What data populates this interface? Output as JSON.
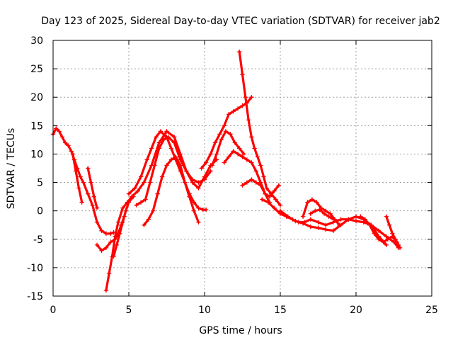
{
  "chart_data": {
    "type": "scatter",
    "title": "Day 123 of 2025, Sidereal Day-to-day VTEC variation (SDTVAR) for receiver jab2",
    "xlabel": "GPS time / hours",
    "ylabel": "SDTVAR / TECUs",
    "xlim": [
      0,
      25
    ],
    "ylim": [
      -15,
      30
    ],
    "xticks": [
      "0",
      "5",
      "10",
      "15",
      "20",
      "25"
    ],
    "yticks": [
      "-15",
      "-10",
      "-5",
      "0",
      "5",
      "10",
      "15",
      "20",
      "25",
      "30"
    ],
    "grid": true,
    "marker": "+",
    "color": "#ff0000",
    "series": [
      {
        "name": "trace-1",
        "x": [
          0.0,
          0.2,
          0.4,
          0.6,
          0.8,
          1.0,
          1.2,
          1.4,
          1.6,
          1.8,
          2.0,
          2.3,
          2.6,
          2.9,
          3.2,
          3.5,
          3.8,
          4.0
        ],
        "y": [
          13.5,
          14.5,
          14.0,
          13.0,
          12.0,
          11.5,
          10.5,
          9.0,
          7.5,
          6.0,
          5.0,
          3.0,
          1.0,
          -2.0,
          -3.5,
          -4.0,
          -4.0,
          -3.8
        ]
      },
      {
        "name": "trace-2",
        "x": [
          1.3,
          1.5,
          1.7,
          1.9
        ],
        "y": [
          10.0,
          7.0,
          4.0,
          1.5
        ]
      },
      {
        "name": "trace-3",
        "x": [
          2.3,
          2.5,
          2.7,
          2.9
        ],
        "y": [
          7.5,
          5.0,
          2.5,
          0.5
        ]
      },
      {
        "name": "trace-4",
        "x": [
          2.9,
          3.2,
          3.5,
          3.8,
          4.1,
          4.3,
          4.5,
          4.7
        ],
        "y": [
          -6.0,
          -7.0,
          -6.5,
          -5.5,
          -5.0,
          -4.0,
          -2.5,
          -1.0
        ]
      },
      {
        "name": "trace-5",
        "x": [
          3.5,
          3.7,
          3.9,
          4.1,
          4.3,
          4.6,
          4.9,
          5.2,
          5.6,
          6.0,
          6.5,
          7.0,
          7.5,
          8.0,
          8.4,
          8.8,
          9.2,
          9.6,
          10.0,
          10.4,
          10.8
        ],
        "y": [
          -14.0,
          -11.0,
          -8.0,
          -4.5,
          -2.0,
          0.5,
          1.5,
          2.5,
          3.5,
          5.0,
          8.0,
          12.0,
          14.0,
          13.0,
          10.0,
          7.0,
          5.0,
          4.0,
          6.0,
          8.0,
          9.0
        ]
      },
      {
        "name": "trace-6",
        "x": [
          4.0,
          4.2,
          4.4,
          4.6,
          4.8,
          5.0,
          5.3
        ],
        "y": [
          -8.0,
          -6.0,
          -4.0,
          -2.0,
          0.0,
          1.5,
          2.5
        ]
      },
      {
        "name": "trace-7",
        "x": [
          5.0,
          5.4,
          5.8,
          6.2,
          6.5,
          6.8,
          7.1,
          7.5,
          7.8,
          8.1,
          8.4,
          8.7,
          9.0,
          9.3,
          9.6,
          9.9,
          10.1
        ],
        "y": [
          3.0,
          4.0,
          6.0,
          9.0,
          11.0,
          13.0,
          14.0,
          13.0,
          11.0,
          9.0,
          7.0,
          5.0,
          3.0,
          1.5,
          0.5,
          0.2,
          0.2
        ]
      },
      {
        "name": "trace-8",
        "x": [
          5.5,
          5.8,
          6.1,
          6.4,
          6.7,
          7.0,
          7.3,
          7.6,
          8.0,
          8.4,
          8.8,
          9.2,
          9.6,
          10.0,
          10.4
        ],
        "y": [
          1.0,
          1.5,
          2.0,
          5.0,
          8.0,
          11.0,
          12.5,
          13.0,
          12.0,
          9.0,
          7.0,
          5.5,
          5.0,
          5.5,
          7.0
        ]
      },
      {
        "name": "trace-9",
        "x": [
          6.0,
          6.3,
          6.6,
          6.9,
          7.2,
          7.5,
          7.8,
          8.1,
          8.4,
          8.7,
          9.0,
          9.3,
          9.6
        ],
        "y": [
          -2.5,
          -1.5,
          0.0,
          3.0,
          6.0,
          8.0,
          9.0,
          9.5,
          8.0,
          5.0,
          2.5,
          0.0,
          -2.0
        ]
      },
      {
        "name": "trace-10",
        "x": [
          9.8,
          10.1,
          10.4,
          10.7,
          11.0,
          11.3,
          11.6,
          11.9,
          12.2,
          12.5,
          12.8,
          13.1
        ],
        "y": [
          7.5,
          8.5,
          10.0,
          12.0,
          13.5,
          15.0,
          17.0,
          17.5,
          18.0,
          18.5,
          19.0,
          20.0
        ]
      },
      {
        "name": "trace-11",
        "x": [
          10.5,
          10.8,
          11.1,
          11.4,
          11.7,
          12.0,
          12.3,
          12.6
        ],
        "y": [
          8.0,
          10.0,
          12.5,
          14.0,
          13.5,
          12.0,
          11.0,
          10.0
        ]
      },
      {
        "name": "trace-12",
        "x": [
          11.3,
          11.6,
          11.9,
          12.2,
          12.5,
          12.8,
          13.1,
          13.4,
          13.7,
          14.0,
          14.3
        ],
        "y": [
          8.5,
          9.5,
          10.5,
          10.0,
          9.5,
          9.0,
          8.5,
          7.0,
          5.0,
          3.0,
          1.5
        ]
      },
      {
        "name": "trace-13",
        "x": [
          12.3,
          12.5,
          12.7,
          12.9,
          13.1,
          13.3,
          13.5,
          13.7,
          13.9,
          14.1,
          14.4,
          14.7,
          15.0
        ],
        "y": [
          28.0,
          24.0,
          20.0,
          16.0,
          13.0,
          11.0,
          9.5,
          8.0,
          6.0,
          4.0,
          3.0,
          2.0,
          1.0
        ]
      },
      {
        "name": "trace-14",
        "x": [
          12.5,
          12.8,
          13.1,
          13.4,
          13.7,
          14.0,
          14.3,
          14.6,
          14.9
        ],
        "y": [
          4.5,
          5.0,
          5.5,
          5.0,
          4.5,
          3.0,
          2.5,
          3.5,
          4.5
        ]
      },
      {
        "name": "trace-15",
        "x": [
          13.8,
          14.2,
          14.6,
          15.0,
          15.4,
          15.8,
          16.2,
          16.6,
          17.0,
          17.5,
          18.0,
          18.5,
          19.0,
          19.5,
          20.0,
          20.5,
          21.0,
          21.5,
          22.0,
          22.5,
          22.8
        ],
        "y": [
          2.0,
          1.5,
          0.5,
          -0.5,
          -1.0,
          -1.5,
          -2.0,
          -2.0,
          -1.5,
          -2.0,
          -2.5,
          -2.0,
          -1.5,
          -1.5,
          -1.8,
          -2.0,
          -2.5,
          -3.5,
          -4.5,
          -5.5,
          -6.5
        ]
      },
      {
        "name": "trace-16",
        "x": [
          15.0,
          15.5,
          16.0,
          16.5,
          17.0,
          17.5,
          18.0,
          18.5,
          19.0,
          19.5,
          20.0,
          20.5,
          21.0,
          21.5,
          22.0
        ],
        "y": [
          0.0,
          -1.0,
          -1.8,
          -2.2,
          -2.8,
          -3.0,
          -3.3,
          -3.5,
          -2.5,
          -1.5,
          -1.0,
          -1.5,
          -2.5,
          -4.5,
          -6.0
        ]
      },
      {
        "name": "trace-17",
        "x": [
          16.5,
          16.8,
          17.1,
          17.4,
          17.7,
          18.0,
          18.3,
          18.6,
          18.9
        ],
        "y": [
          -1.0,
          1.5,
          2.0,
          1.5,
          0.5,
          0.0,
          -0.5,
          -1.5,
          -2.5
        ]
      },
      {
        "name": "trace-18",
        "x": [
          17.0,
          17.3,
          17.6,
          17.9,
          18.2,
          18.5
        ],
        "y": [
          -0.5,
          0.0,
          0.2,
          -0.5,
          -1.0,
          -1.5
        ]
      },
      {
        "name": "trace-19",
        "x": [
          20.3,
          20.6,
          20.9,
          21.2,
          21.5,
          21.8,
          22.1,
          22.4,
          22.7,
          22.9
        ],
        "y": [
          -1.0,
          -1.5,
          -2.5,
          -4.0,
          -5.0,
          -5.5,
          -5.0,
          -4.5,
          -5.5,
          -6.5
        ]
      },
      {
        "name": "trace-20",
        "x": [
          22.0,
          22.2,
          22.4,
          22.6,
          22.8
        ],
        "y": [
          -1.0,
          -2.5,
          -4.0,
          -5.0,
          -6.0
        ]
      }
    ]
  }
}
